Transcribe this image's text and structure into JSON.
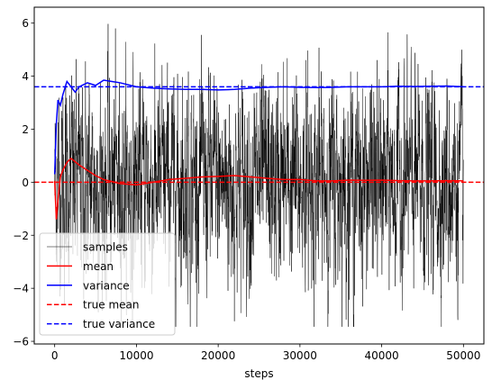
{
  "chart_data": {
    "type": "line",
    "title": "",
    "xlabel": "steps",
    "ylabel": "",
    "xlim": [
      -2500,
      52500
    ],
    "ylim": [
      -6.1,
      6.6
    ],
    "x_ticks": [
      0,
      10000,
      20000,
      30000,
      40000,
      50000
    ],
    "x_tick_labels": [
      "0",
      "10000",
      "20000",
      "30000",
      "40000",
      "50000"
    ],
    "y_ticks": [
      -6,
      -4,
      -2,
      0,
      2,
      4,
      6
    ],
    "y_tick_labels": [
      "−6",
      "−4",
      "−2",
      "0",
      "2",
      "4",
      "6"
    ],
    "grid": false,
    "legend_position": "lower-left",
    "series": [
      {
        "name": "samples",
        "color": "#000000",
        "style": "solid",
        "description_values": {
          "n_points": 50000,
          "mean": 0.0,
          "variance": 3.6,
          "max": 6.05,
          "min": -5.45
        }
      },
      {
        "name": "mean",
        "color": "#ff0000",
        "style": "solid",
        "x": [
          0,
          200,
          400,
          700,
          1000,
          1500,
          2000,
          3000,
          4000,
          5000,
          6000,
          8000,
          10000,
          12000,
          14000,
          16000,
          18000,
          20000,
          22000,
          24000,
          26000,
          28000,
          30000,
          32000,
          34000,
          36000,
          38000,
          40000,
          42000,
          44000,
          46000,
          48000,
          50000
        ],
        "y": [
          0.05,
          -1.4,
          -0.7,
          0.2,
          0.45,
          0.75,
          0.9,
          0.65,
          0.45,
          0.25,
          0.1,
          -0.05,
          -0.1,
          0.0,
          0.1,
          0.15,
          0.2,
          0.22,
          0.25,
          0.2,
          0.15,
          0.1,
          0.1,
          0.05,
          0.05,
          0.08,
          0.07,
          0.08,
          0.06,
          0.05,
          0.05,
          0.06,
          0.05
        ]
      },
      {
        "name": "variance",
        "color": "#0000ff",
        "style": "solid",
        "x": [
          0,
          200,
          400,
          700,
          1000,
          1500,
          2000,
          2500,
          3000,
          4000,
          5000,
          6000,
          7000,
          8000,
          10000,
          12000,
          14000,
          16000,
          18000,
          20000,
          22000,
          24000,
          26000,
          28000,
          30000,
          32000,
          34000,
          36000,
          38000,
          40000,
          42000,
          44000,
          46000,
          48000,
          50000
        ],
        "y": [
          0.3,
          2.2,
          3.1,
          2.9,
          3.3,
          3.8,
          3.6,
          3.4,
          3.6,
          3.75,
          3.65,
          3.85,
          3.8,
          3.75,
          3.6,
          3.55,
          3.52,
          3.5,
          3.5,
          3.48,
          3.5,
          3.55,
          3.58,
          3.6,
          3.58,
          3.57,
          3.58,
          3.6,
          3.6,
          3.6,
          3.62,
          3.61,
          3.62,
          3.63,
          3.6
        ]
      },
      {
        "name": "true mean",
        "color": "#ff0000",
        "style": "dashed",
        "value": 0.0
      },
      {
        "name": "true variance",
        "color": "#0000ff",
        "style": "dashed",
        "value": 3.6
      }
    ]
  }
}
